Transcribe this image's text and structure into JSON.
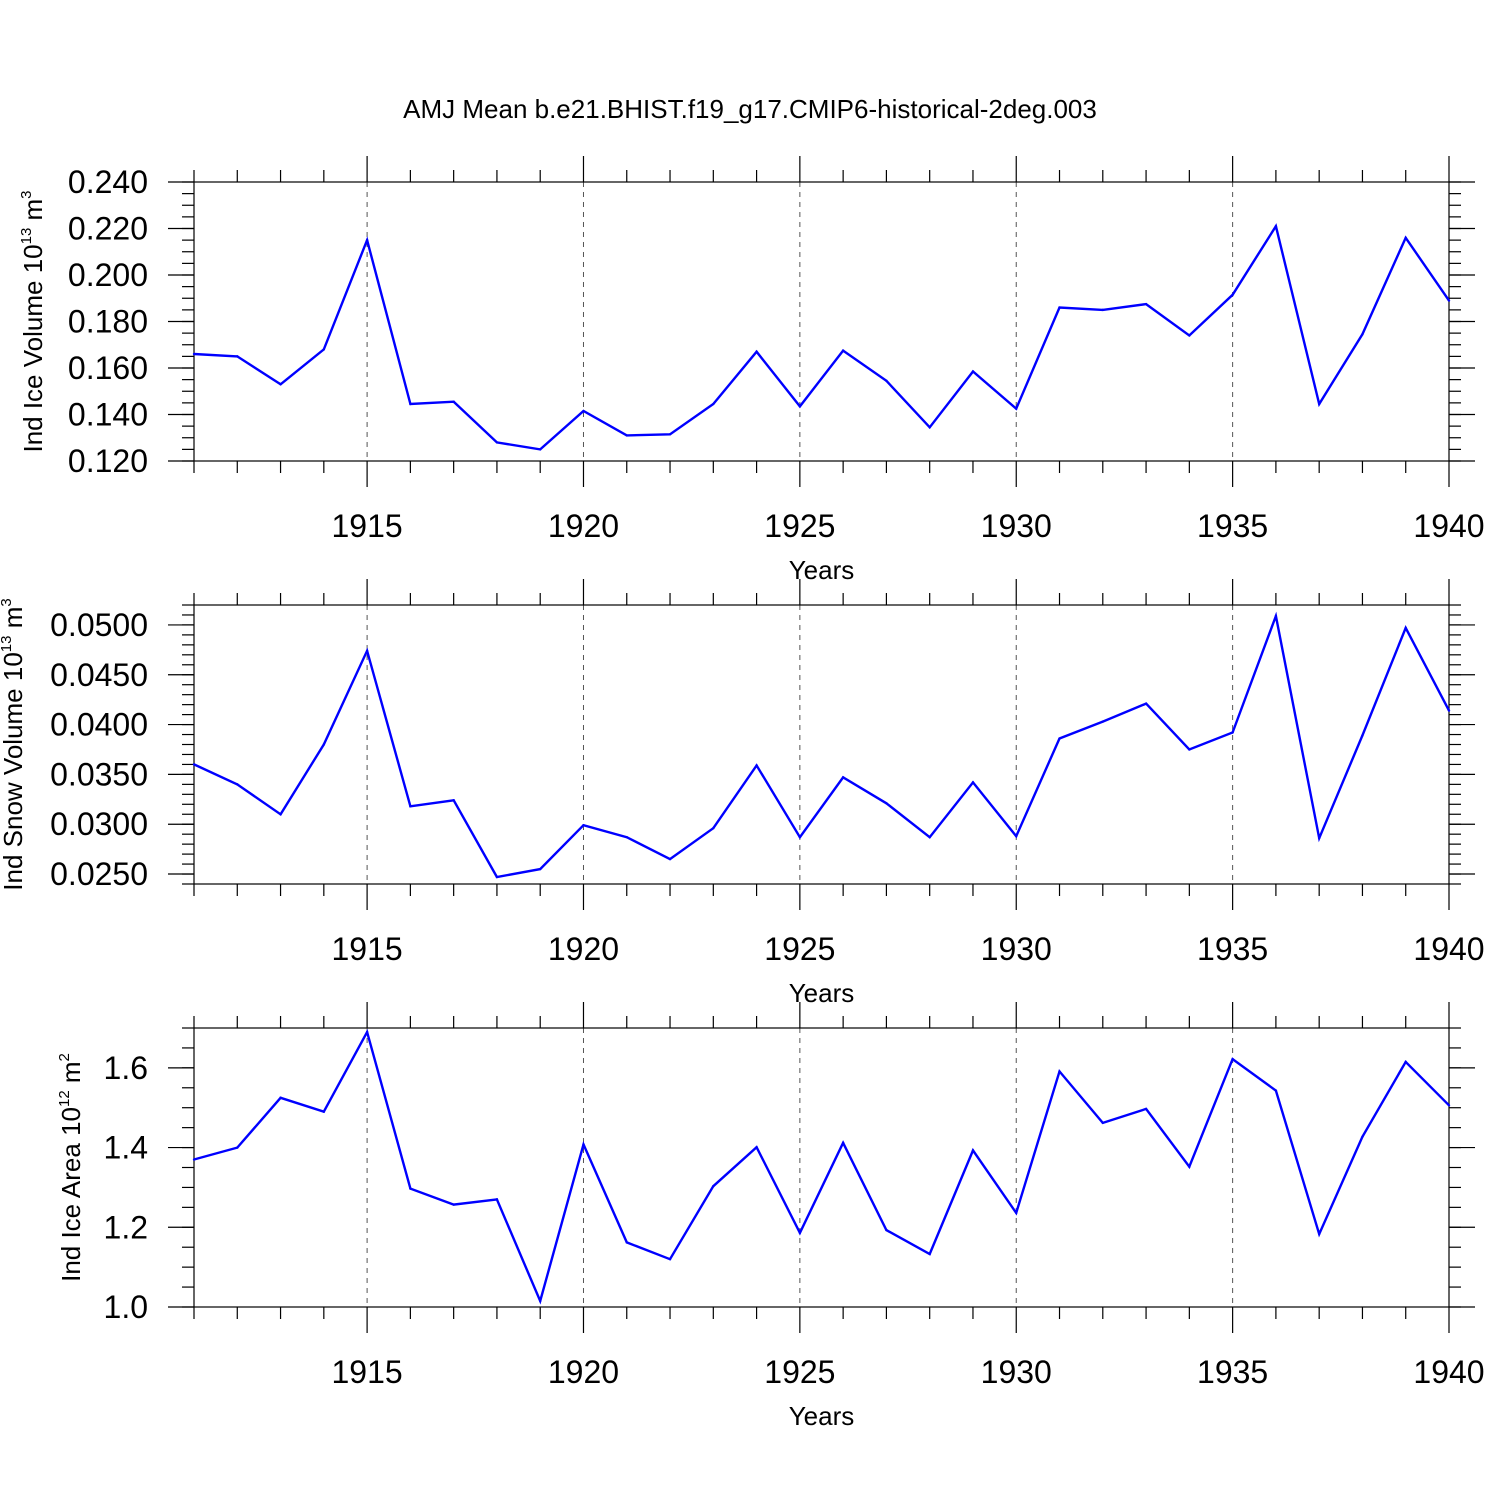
{
  "title": "AMJ Mean b.e21.BHIST.f19_g17.CMIP6-historical-2deg.003",
  "colors": {
    "line": "#0000ff",
    "axis": "#000000",
    "grid": "#555555"
  },
  "chart_data": [
    {
      "type": "line",
      "title": "AMJ Mean b.e21.BHIST.f19_g17.CMIP6-historical-2deg.003",
      "xlabel": "Years",
      "ylabel_main": "Ind Ice Volume 10",
      "ylabel_exp": "13",
      "ylabel_unit": " m",
      "ylabel_unit_exp": "3",
      "xlim": [
        1911,
        1940
      ],
      "ylim": [
        0.12,
        0.24
      ],
      "yticks": [
        0.12,
        0.14,
        0.16,
        0.18,
        0.2,
        0.22,
        0.24
      ],
      "ytick_labels": [
        "0.120",
        "0.140",
        "0.160",
        "0.180",
        "0.200",
        "0.220",
        "0.240"
      ],
      "yminor_step": 0.005,
      "xticks": [
        1915,
        1920,
        1925,
        1930,
        1935,
        1940
      ],
      "xtick_labels": [
        "1915",
        "1920",
        "1925",
        "1930",
        "1935",
        "1940"
      ],
      "grid_x": [
        1915,
        1920,
        1925,
        1930,
        1935
      ],
      "x": [
        1911,
        1912,
        1913,
        1914,
        1915,
        1916,
        1917,
        1918,
        1919,
        1920,
        1921,
        1922,
        1923,
        1924,
        1925,
        1926,
        1927,
        1928,
        1929,
        1930,
        1931,
        1932,
        1933,
        1934,
        1935,
        1936,
        1937,
        1938,
        1939,
        1940
      ],
      "values": [
        0.166,
        0.165,
        0.153,
        0.168,
        0.215,
        0.1445,
        0.1455,
        0.128,
        0.125,
        0.1415,
        0.131,
        0.1315,
        0.1445,
        0.167,
        0.1435,
        0.1675,
        0.1545,
        0.1345,
        0.1585,
        0.1425,
        0.186,
        0.185,
        0.1875,
        0.174,
        0.1915,
        0.221,
        0.1445,
        0.1745,
        0.216,
        0.189
      ]
    },
    {
      "type": "line",
      "xlabel": "Years",
      "ylabel_main": "Ind Snow Volume 10",
      "ylabel_exp": "13",
      "ylabel_unit": " m",
      "ylabel_unit_exp": "3",
      "xlim": [
        1911,
        1940
      ],
      "ylim": [
        0.024,
        0.052
      ],
      "yticks": [
        0.025,
        0.03,
        0.035,
        0.04,
        0.045,
        0.05
      ],
      "ytick_labels": [
        "0.0250",
        "0.0300",
        "0.0350",
        "0.0400",
        "0.0450",
        "0.0500"
      ],
      "yminor_step": 0.001,
      "xticks": [
        1915,
        1920,
        1925,
        1930,
        1935,
        1940
      ],
      "xtick_labels": [
        "1915",
        "1920",
        "1925",
        "1930",
        "1935",
        "1940"
      ],
      "grid_x": [
        1915,
        1920,
        1925,
        1930,
        1935
      ],
      "x": [
        1911,
        1912,
        1913,
        1914,
        1915,
        1916,
        1917,
        1918,
        1919,
        1920,
        1921,
        1922,
        1923,
        1924,
        1925,
        1926,
        1927,
        1928,
        1929,
        1930,
        1931,
        1932,
        1933,
        1934,
        1935,
        1936,
        1937,
        1938,
        1939,
        1940
      ],
      "values": [
        0.036,
        0.034,
        0.031,
        0.038,
        0.0474,
        0.0318,
        0.0324,
        0.0247,
        0.0255,
        0.0299,
        0.0287,
        0.0265,
        0.0296,
        0.0359,
        0.0287,
        0.0347,
        0.0321,
        0.0287,
        0.0342,
        0.0288,
        0.0386,
        0.0403,
        0.0421,
        0.0375,
        0.0392,
        0.0509,
        0.0286,
        0.0389,
        0.0497,
        0.0414
      ]
    },
    {
      "type": "line",
      "xlabel": "Years",
      "ylabel_main": "Ind Ice Area 10",
      "ylabel_exp": "12",
      "ylabel_unit": " m",
      "ylabel_unit_exp": "2",
      "xlim": [
        1911,
        1940
      ],
      "ylim": [
        1.0,
        1.7
      ],
      "yticks": [
        1.0,
        1.2,
        1.4,
        1.6
      ],
      "ytick_labels": [
        "1.0",
        "1.2",
        "1.4",
        "1.6"
      ],
      "yminor_step": 0.05,
      "xticks": [
        1915,
        1920,
        1925,
        1930,
        1935,
        1940
      ],
      "xtick_labels": [
        "1915",
        "1920",
        "1925",
        "1930",
        "1935",
        "1940"
      ],
      "grid_x": [
        1915,
        1920,
        1925,
        1930,
        1935
      ],
      "x": [
        1911,
        1912,
        1913,
        1914,
        1915,
        1916,
        1917,
        1918,
        1919,
        1920,
        1921,
        1922,
        1923,
        1924,
        1925,
        1926,
        1927,
        1928,
        1929,
        1930,
        1931,
        1932,
        1933,
        1934,
        1935,
        1936,
        1937,
        1938,
        1939,
        1940
      ],
      "values": [
        1.37,
        1.4,
        1.525,
        1.49,
        1.69,
        1.297,
        1.257,
        1.27,
        1.015,
        1.408,
        1.162,
        1.12,
        1.303,
        1.401,
        1.186,
        1.412,
        1.193,
        1.133,
        1.393,
        1.236,
        1.591,
        1.462,
        1.497,
        1.352,
        1.622,
        1.543,
        1.183,
        1.427,
        1.615,
        1.506
      ]
    }
  ]
}
